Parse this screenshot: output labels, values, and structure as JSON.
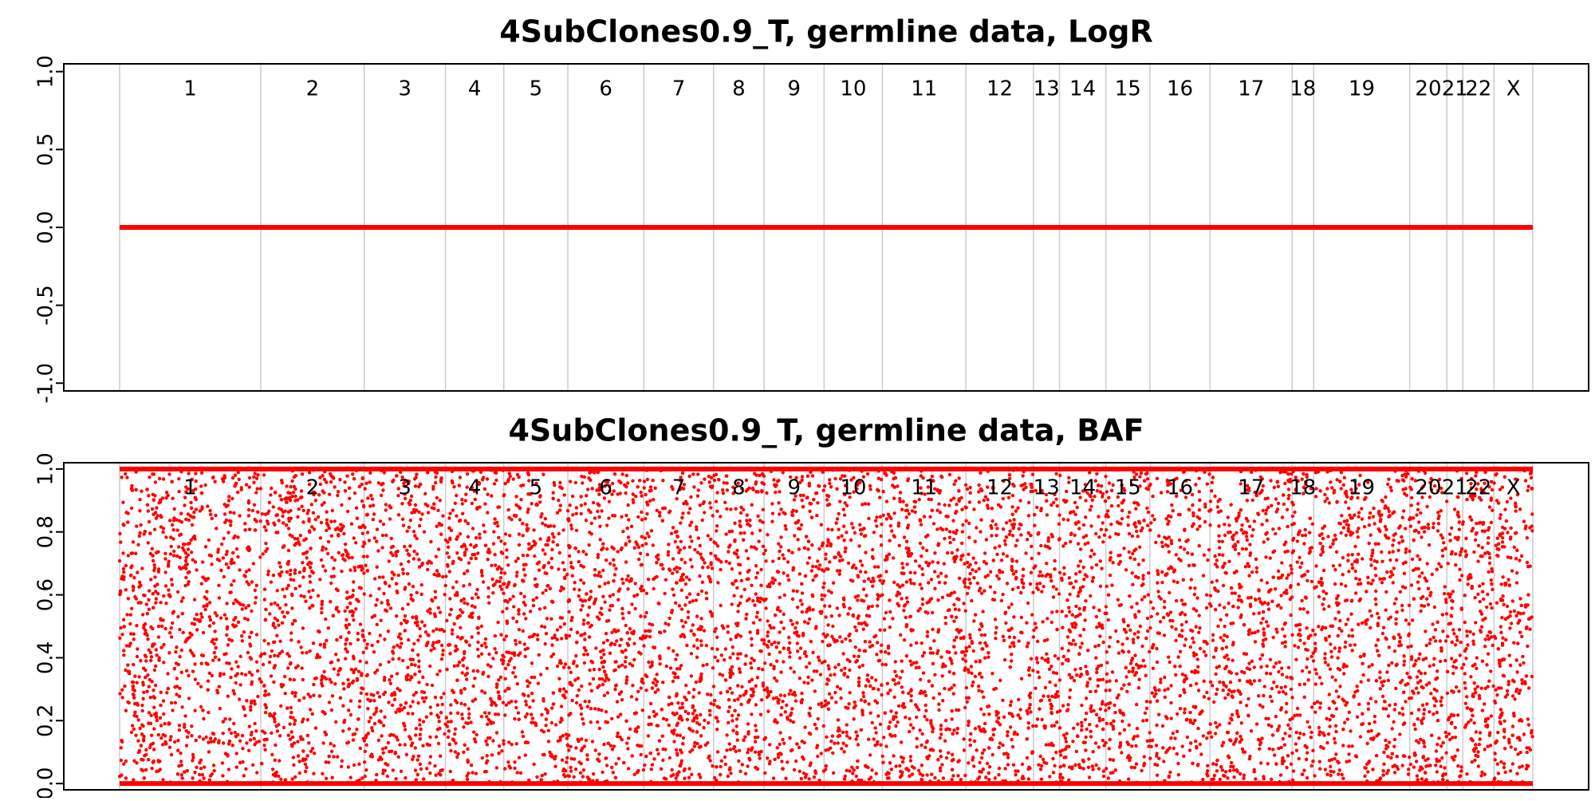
{
  "chart_data": [
    {
      "type": "scatter",
      "title": "4SubClones0.9_T, germline data, LogR",
      "xlabel": "",
      "ylabel": "",
      "ylim": [
        -1.05,
        1.05
      ],
      "yticks": [
        -1.0,
        -0.5,
        0.0,
        0.5,
        1.0
      ],
      "ytick_labels": [
        "-1.0",
        "-0.5",
        "0.0",
        "0.5",
        "1.0"
      ],
      "chromosomes": [
        "1",
        "2",
        "3",
        "4",
        "5",
        "6",
        "7",
        "8",
        "9",
        "10",
        "11",
        "12",
        "13",
        "14",
        "15",
        "16",
        "17",
        "18",
        "19",
        "20",
        "21",
        "22",
        "X"
      ],
      "chromosome_boundaries": [
        0,
        248.0,
        429.7,
        572.4,
        674.9,
        787.4,
        920.8,
        1043.3,
        1132.2,
        1237.5,
        1339.9,
        1486.6,
        1605.3,
        1651.1,
        1732.5,
        1809.8,
        1915.4,
        2059.8,
        2097.6,
        2266.3,
        2331.6,
        2359.6,
        2414.3,
        2482.5
      ],
      "series": [
        {
          "constant_value": 0.0
        }
      ],
      "point_color": "#ff0000",
      "grid": false
    },
    {
      "type": "scatter",
      "title": "4SubClones0.9_T, germline data, BAF",
      "xlabel": "",
      "ylabel": "",
      "ylim": [
        -0.02,
        1.02
      ],
      "yticks": [
        0.0,
        0.2,
        0.4,
        0.6,
        0.8,
        1.0
      ],
      "ytick_labels": [
        "0.0",
        "0.2",
        "0.4",
        "0.6",
        "0.8",
        "1.0"
      ],
      "chromosomes": [
        "1",
        "2",
        "3",
        "4",
        "5",
        "6",
        "7",
        "8",
        "9",
        "10",
        "11",
        "12",
        "13",
        "14",
        "15",
        "16",
        "17",
        "18",
        "19",
        "20",
        "21",
        "22",
        "X"
      ],
      "chromosome_boundaries": [
        0,
        248.0,
        429.7,
        572.4,
        674.9,
        787.4,
        920.8,
        1043.3,
        1132.2,
        1237.5,
        1339.9,
        1486.6,
        1605.3,
        1651.1,
        1732.5,
        1809.8,
        1915.4,
        2059.8,
        2097.6,
        2266.3,
        2331.6,
        2359.6,
        2414.3,
        2482.5
      ],
      "series": [
        {
          "homozygous_values": [
            0.0,
            1.0
          ],
          "heterozygous_range": [
            0.0,
            1.0
          ]
        }
      ],
      "point_color": "#ff0000",
      "grid": false
    }
  ]
}
